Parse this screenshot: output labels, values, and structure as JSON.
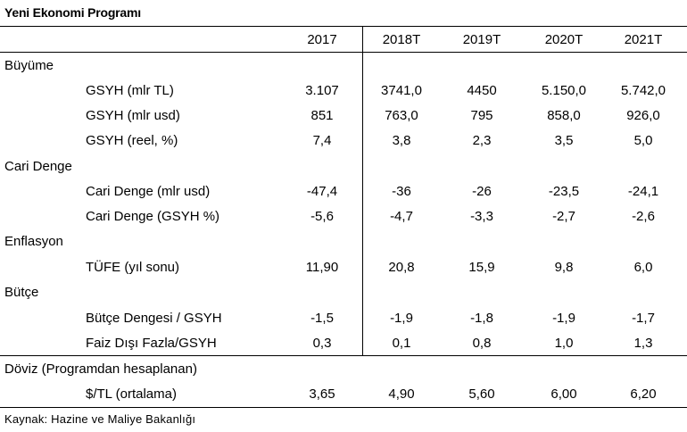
{
  "title": "Yeni Ekonomi Programı",
  "columns": [
    "2017",
    "2018T",
    "2019T",
    "2020T",
    "2021T"
  ],
  "sections": [
    {
      "name": "Büyüme",
      "rows": [
        {
          "label": "GSYH (mlr TL)",
          "values": [
            "3.107",
            "3741,0",
            "4450",
            "5.150,0",
            "5.742,0"
          ]
        },
        {
          "label": "GSYH (mlr usd)",
          "values": [
            "851",
            "763,0",
            "795",
            "858,0",
            "926,0"
          ]
        },
        {
          "label": "GSYH (reel, %)",
          "values": [
            "7,4",
            "3,8",
            "2,3",
            "3,5",
            "5,0"
          ]
        }
      ]
    },
    {
      "name": "Cari Denge",
      "rows": [
        {
          "label": "Cari Denge (mlr usd)",
          "values": [
            "-47,4",
            "-36",
            "-26",
            "-23,5",
            "-24,1"
          ]
        },
        {
          "label": "Cari Denge (GSYH %)",
          "values": [
            "-5,6",
            "-4,7",
            "-3,3",
            "-2,7",
            "-2,6"
          ]
        }
      ]
    },
    {
      "name": "Enflasyon",
      "rows": [
        {
          "label": "TÜFE (yıl sonu)",
          "values": [
            "11,90",
            "20,8",
            "15,9",
            "9,8",
            "6,0"
          ]
        }
      ]
    },
    {
      "name": "Bütçe",
      "rows": [
        {
          "label": "Bütçe Dengesi / GSYH",
          "values": [
            "-1,5",
            "-1,9",
            "-1,8",
            "-1,9",
            "-1,7"
          ]
        },
        {
          "label": "Faiz Dışı Fazla/GSYH",
          "values": [
            "0,3",
            "0,1",
            "0,8",
            "1,0",
            "1,3"
          ]
        }
      ]
    },
    {
      "name": "Döviz (Programdan hesaplanan)",
      "rows": [
        {
          "label": "$/TL (ortalama)",
          "values": [
            "3,65",
            "4,90",
            "5,60",
            "6,00",
            "6,20"
          ]
        }
      ]
    }
  ],
  "source": "Kaynak: Hazine ve Maliye Bakanlığı"
}
